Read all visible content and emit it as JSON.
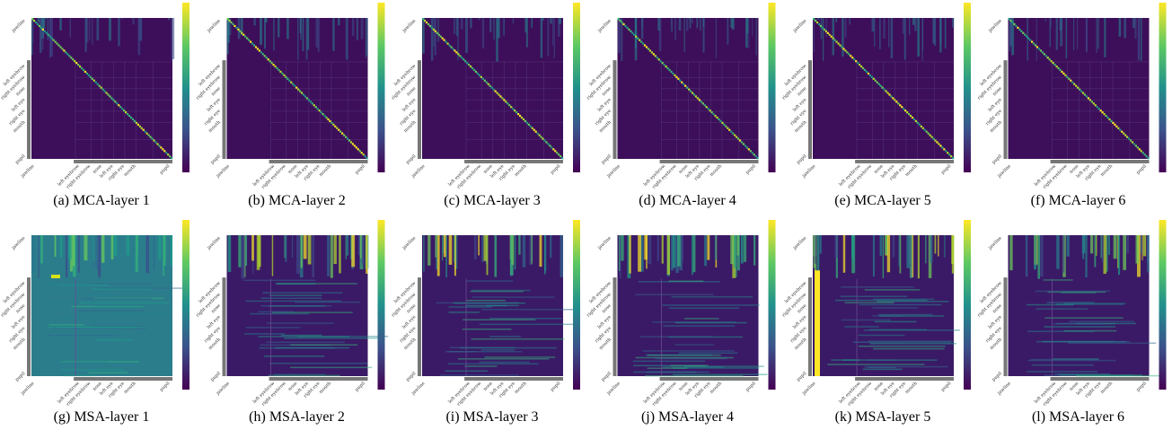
{
  "panels": [
    {
      "caption": "(a) MCA-layer 1"
    },
    {
      "caption": "(b) MCA-layer 2"
    },
    {
      "caption": "(c) MCA-layer 3"
    },
    {
      "caption": "(d) MCA-layer 4"
    },
    {
      "caption": "(e) MCA-layer 5"
    },
    {
      "caption": "(f) MCA-layer 6"
    },
    {
      "caption": "(g) MSA-layer 1"
    },
    {
      "caption": "(h) MSA-layer 2"
    },
    {
      "caption": "(i) MSA-layer 3"
    },
    {
      "caption": "(j) MSA-layer 4"
    },
    {
      "caption": "(k) MSA-layer 5"
    },
    {
      "caption": "(l) MSA-layer 6"
    }
  ],
  "axis_labels": [
    "jawline",
    "left eyebrow",
    "right eyebrow",
    "nose",
    "left eye",
    "right eye",
    "mouth",
    "pupil"
  ]
}
